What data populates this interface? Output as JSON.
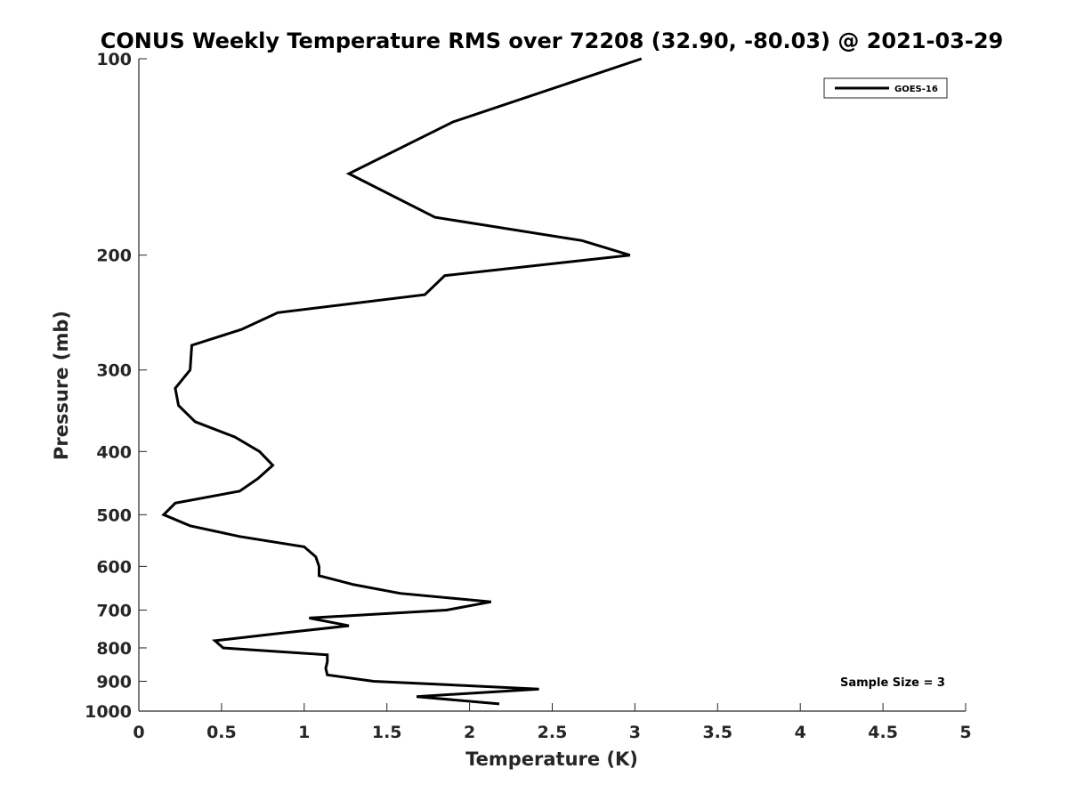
{
  "chart_data": {
    "type": "line",
    "title": "CONUS Weekly Temperature RMS over 72208 (32.90, -80.03) @ 2021-03-29",
    "xlabel": "Temperature (K)",
    "ylabel": "Pressure (mb)",
    "xlim": [
      0,
      5
    ],
    "ylim": [
      100,
      1000
    ],
    "y_scale": "log",
    "y_reversed": true,
    "grid": false,
    "legend_position": "top-right",
    "xticks": [
      0,
      0.5,
      1,
      1.5,
      2,
      2.5,
      3,
      3.5,
      4,
      4.5,
      5
    ],
    "xtick_labels": [
      "0",
      "0.5",
      "1",
      "1.5",
      "2",
      "2.5",
      "3",
      "3.5",
      "4",
      "4.5",
      "5"
    ],
    "yticks": [
      100,
      200,
      300,
      400,
      500,
      600,
      700,
      800,
      900,
      1000
    ],
    "ytick_labels": [
      "100",
      "200",
      "300",
      "400",
      "500",
      "600",
      "700",
      "800",
      "900",
      "1000"
    ],
    "series": [
      {
        "name": "GOES-16",
        "color": "#000000",
        "points": [
          [
            3.04,
            100
          ],
          [
            1.9,
            125
          ],
          [
            1.27,
            150
          ],
          [
            1.79,
            175
          ],
          [
            2.68,
            190
          ],
          [
            2.97,
            200
          ],
          [
            1.85,
            215
          ],
          [
            1.73,
            230
          ],
          [
            0.84,
            245
          ],
          [
            0.62,
            260
          ],
          [
            0.32,
            275
          ],
          [
            0.31,
            300
          ],
          [
            0.22,
            320
          ],
          [
            0.24,
            340
          ],
          [
            0.34,
            360
          ],
          [
            0.58,
            380
          ],
          [
            0.73,
            400
          ],
          [
            0.81,
            420
          ],
          [
            0.72,
            440
          ],
          [
            0.61,
            460
          ],
          [
            0.22,
            480
          ],
          [
            0.15,
            500
          ],
          [
            0.31,
            520
          ],
          [
            0.61,
            540
          ],
          [
            1.0,
            560
          ],
          [
            1.07,
            580
          ],
          [
            1.09,
            600
          ],
          [
            1.09,
            620
          ],
          [
            1.3,
            640
          ],
          [
            1.58,
            660
          ],
          [
            2.13,
            680
          ],
          [
            1.86,
            700
          ],
          [
            1.03,
            720
          ],
          [
            1.27,
            740
          ],
          [
            0.85,
            760
          ],
          [
            0.46,
            780
          ],
          [
            0.51,
            800
          ],
          [
            1.14,
            820
          ],
          [
            1.14,
            840
          ],
          [
            1.13,
            860
          ],
          [
            1.14,
            880
          ],
          [
            1.42,
            900
          ],
          [
            2.42,
            925
          ],
          [
            1.68,
            950
          ],
          [
            2.18,
            975
          ]
        ]
      }
    ],
    "annotation": "Sample Size = 3"
  }
}
